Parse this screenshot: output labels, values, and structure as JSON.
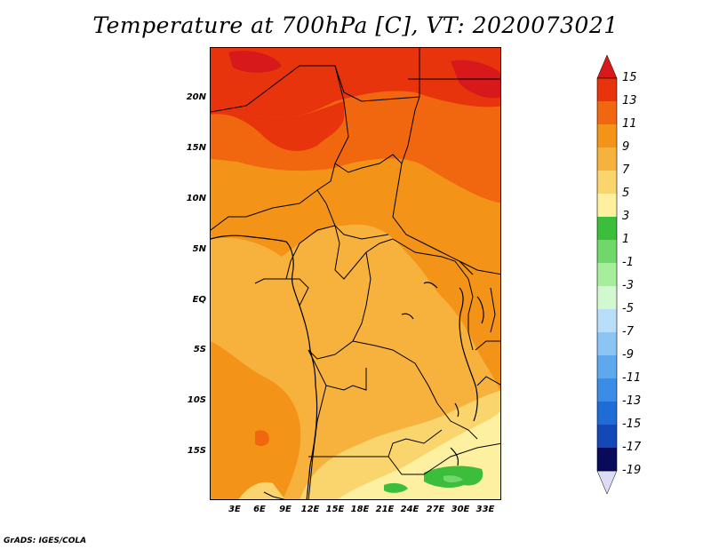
{
  "title": "Temperature at 700hPa [C], VT: 2020073021",
  "credit": "GrADS: IGES/COLA",
  "lat_labels": [
    "20N",
    "15N",
    "10N",
    "5N",
    "EQ",
    "5S",
    "10S",
    "15S"
  ],
  "lon_labels": [
    "3E",
    "6E",
    "9E",
    "12E",
    "15E",
    "18E",
    "21E",
    "24E",
    "27E",
    "30E",
    "33E"
  ],
  "colorbar": {
    "labels": [
      "15",
      "13",
      "11",
      "9",
      "7",
      "5",
      "3",
      "1",
      "-1",
      "-3",
      "-5",
      "-7",
      "-9",
      "-11",
      "-13",
      "-15",
      "-17",
      "-19"
    ],
    "colors": {
      "over": "#d7191c",
      "c13": "#e8340c",
      "c11": "#f1670f",
      "c9": "#f39418",
      "c7": "#f7b23d",
      "c5": "#fad46d",
      "c3": "#fdf0a0",
      "c1": "#3cbe3c",
      "cm1": "#70d86a",
      "cm3": "#a6ee9c",
      "cm5": "#d2f8d0",
      "cm7": "#b9defa",
      "cm9": "#8cc4f4",
      "cm11": "#5ea8ee",
      "cm13": "#3a8ce4",
      "cm15": "#1f6cd6",
      "cm17": "#1448b6",
      "cm19": "#0a2a8c",
      "under_bottom": "#0a0a5a",
      "under": "#dcdcf6"
    }
  }
}
